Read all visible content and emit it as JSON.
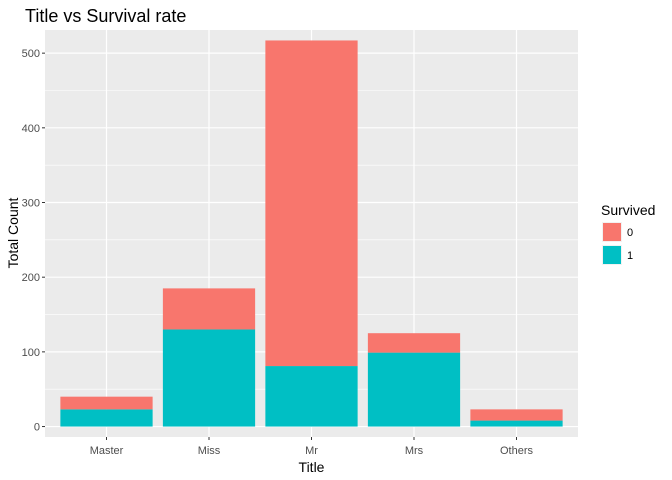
{
  "chart_data": {
    "type": "bar",
    "stacked": true,
    "title": "Title vs Survival rate",
    "xlabel": "Title",
    "ylabel": "Total Count",
    "categories": [
      "Master",
      "Miss",
      "Mr",
      "Mrs",
      "Others"
    ],
    "series": [
      {
        "name": "0",
        "color": "#F8766D",
        "values": [
          17,
          55,
          436,
          26,
          15
        ]
      },
      {
        "name": "1",
        "color": "#00BFC4",
        "values": [
          23,
          130,
          81,
          99,
          8
        ]
      }
    ],
    "ylim": [
      -14,
      531
    ],
    "yticks": [
      0,
      100,
      200,
      300,
      400,
      500
    ],
    "grid": true,
    "legend": {
      "title": "Survived",
      "position": "right"
    }
  }
}
